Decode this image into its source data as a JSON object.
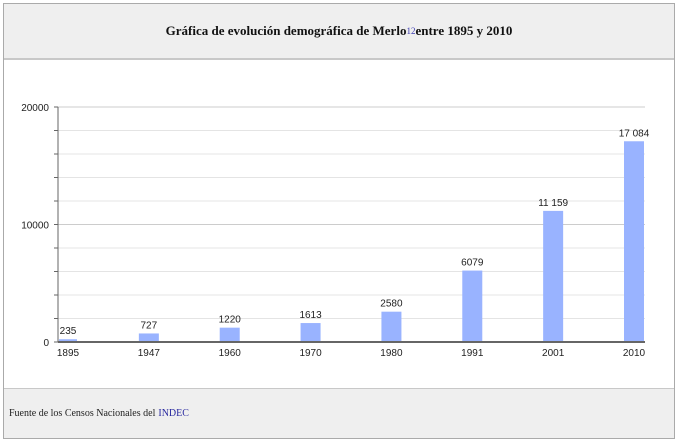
{
  "title": {
    "text_before": "Gráfica de evolución demográfica de Merlo",
    "ref": "12",
    "text_after": " entre 1895 y 2010"
  },
  "footer": {
    "text": "Fuente de los Censos Nacionales del",
    "link": "INDEC"
  },
  "colors": {
    "bar": "#99b3ff",
    "axis": "#666666",
    "grid": "#e4e4e4",
    "major_grid": "#cccccc",
    "band_bg": "#efefef",
    "link": "#2a2aa0"
  },
  "chart_data": {
    "type": "bar",
    "title": "Gráfica de evolución demográfica de Merlo entre 1895 y 2010",
    "xlabel": "",
    "ylabel": "",
    "categories": [
      "1895",
      "1947",
      "1960",
      "1970",
      "1980",
      "1991",
      "2001",
      "2010"
    ],
    "values": [
      235,
      727,
      1220,
      1613,
      2580,
      6079,
      11159,
      17084
    ],
    "value_labels": [
      "235",
      "727",
      "1220",
      "1613",
      "2580",
      "6079",
      "11 159",
      "17 084"
    ],
    "ylim": [
      0,
      20000
    ],
    "y_ticks": [
      0,
      10000,
      20000
    ],
    "y_minor_step": 2000,
    "grid": true,
    "legend": null
  }
}
